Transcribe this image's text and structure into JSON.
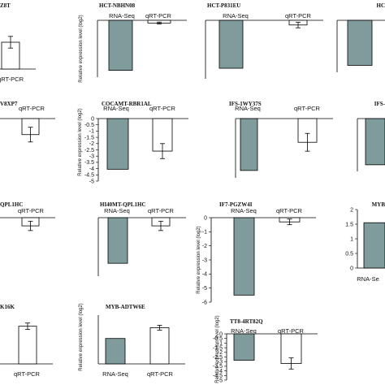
{
  "colors": {
    "rna_bar": "#7f9b9b",
    "qrt_bar": "#ffffff",
    "stroke": "#000000"
  },
  "chart_data": [
    {
      "id": "p1",
      "type": "bar",
      "title": "Z8T",
      "ylabel": "",
      "yticks": [],
      "ylim": [
        0,
        1
      ],
      "categories": [
        "",
        "qRT-PCR"
      ],
      "values": [
        null,
        0.55
      ],
      "errors": [
        null,
        0.12
      ]
    },
    {
      "id": "p2",
      "type": "bar",
      "title": "HCT-NBHN08",
      "ylabel": "Relative expression level (log2)",
      "yticks": [],
      "ylim": [
        -2.5,
        0
      ],
      "categories": [
        "RNA-Seq",
        "qRT-PCR"
      ],
      "values": [
        -2.2,
        -0.12
      ],
      "errors": [
        null,
        0.04
      ]
    },
    {
      "id": "p3",
      "type": "bar",
      "title": "HCT-P831EU",
      "ylabel": "",
      "yticks": [],
      "ylim": [
        -2.5,
        0
      ],
      "categories": [
        "RNA-Seq",
        "qRT-PCR"
      ],
      "values": [
        -2.05,
        -0.2
      ],
      "errors": [
        null,
        0.12
      ]
    },
    {
      "id": "p4",
      "type": "bar",
      "title": "HC",
      "ylabel": "",
      "yticks": [],
      "ylim": [
        -1.5,
        0
      ],
      "categories": [
        "",
        ""
      ],
      "values": [
        -1.3,
        null
      ],
      "errors": [
        null,
        null
      ]
    },
    {
      "id": "p5",
      "type": "bar",
      "title": "V8XP7",
      "ylabel": "",
      "yticks": [],
      "ylim": [
        -4.5,
        0
      ],
      "categories": [
        "",
        "qRT-PCR"
      ],
      "values": [
        null,
        -1.2
      ],
      "errors": [
        null,
        0.55
      ]
    },
    {
      "id": "p6",
      "type": "bar",
      "title": "COCAMT-RBR1AL",
      "ylabel": "Relative expression level (log2)",
      "yticks": [
        0,
        -0.5,
        -1,
        -1.5,
        -2,
        -2.5,
        -3,
        -3.5,
        -4,
        -4.5,
        -5
      ],
      "ylim": [
        -5,
        0
      ],
      "categories": [
        "RNA-Seq",
        "qRT-PCR"
      ],
      "values": [
        -4.05,
        -2.6
      ],
      "errors": [
        null,
        0.6
      ]
    },
    {
      "id": "p7",
      "type": "bar",
      "title": "IFS-1WY37S",
      "ylabel": "",
      "yticks": [],
      "ylim": [
        -2,
        0
      ],
      "categories": [
        "RNA-Seq",
        "qRT-PCR"
      ],
      "values": [
        -1.75,
        -0.8
      ],
      "errors": [
        null,
        0.3
      ]
    },
    {
      "id": "p8",
      "type": "bar",
      "title": "IFS-",
      "ylabel": "",
      "yticks": [],
      "ylim": [
        -2,
        0
      ],
      "categories": [
        "",
        ""
      ],
      "values": [
        -1.75,
        null
      ],
      "errors": [
        null,
        null
      ]
    },
    {
      "id": "p9",
      "type": "bar",
      "title": "QPL1HC",
      "ylabel": "",
      "yticks": [],
      "ylim": [
        -2.5,
        0
      ],
      "categories": [
        "",
        "qRT-PCR"
      ],
      "values": [
        null,
        -0.35
      ],
      "errors": [
        null,
        0.2
      ]
    },
    {
      "id": "p10",
      "type": "bar",
      "title": "HI40MT-QPL1HC",
      "ylabel": "",
      "yticks": [],
      "ylim": [
        -2.5,
        0
      ],
      "categories": [
        "RNA-Seq",
        "qRT-PCR"
      ],
      "values": [
        -1.95,
        -0.35
      ],
      "errors": [
        null,
        0.2
      ]
    },
    {
      "id": "p11",
      "type": "bar",
      "title": "IF7-PGZW4I",
      "ylabel": "Relative expression level (log2)",
      "yticks": [
        0,
        -1,
        -2,
        -3,
        -4,
        -5,
        -6
      ],
      "ylim": [
        -6,
        0
      ],
      "categories": [
        "RNA-Seq",
        "qRT-PCR"
      ],
      "values": [
        -5.5,
        -0.3
      ],
      "errors": [
        null,
        0.2
      ]
    },
    {
      "id": "p12",
      "type": "bar",
      "title": "MYB",
      "ylabel": "",
      "yticks": [
        0,
        0.5,
        1,
        1.5,
        2
      ],
      "ylim": [
        0,
        2
      ],
      "categories": [
        "RNA-Se",
        ""
      ],
      "values": [
        1.55,
        null
      ],
      "errors": [
        null,
        null
      ]
    },
    {
      "id": "p13",
      "type": "bar",
      "title": "K16K",
      "ylabel": "",
      "yticks": [],
      "ylim": [
        0,
        14
      ],
      "categories": [
        "",
        "qRT-PCR"
      ],
      "values": [
        null,
        11.8
      ],
      "errors": [
        null,
        1.0
      ]
    },
    {
      "id": "p14",
      "type": "bar",
      "title": "MYB-ADTW6E",
      "ylabel": "Relative expression level (log2)",
      "yticks": [],
      "ylim": [
        0,
        14
      ],
      "categories": [
        "RNA-Seq",
        "qRT-PCR"
      ],
      "values": [
        7.3,
        10.4
      ],
      "errors": [
        null,
        0.7
      ]
    },
    {
      "id": "p15",
      "type": "bar",
      "title": "TT8-4RT82Q",
      "ylabel": "Relative expression level (log2)",
      "yticks": [
        0,
        -0.5,
        -1,
        -1.5,
        -2,
        -2.5,
        -3,
        -3.5,
        -4,
        -4.5,
        -5
      ],
      "ylim": [
        -5,
        0
      ],
      "categories": [
        "RNA-Seq",
        "qRT-PCR"
      ],
      "values": [
        -2.85,
        -3.2
      ],
      "errors": [
        null,
        0.6
      ]
    }
  ]
}
